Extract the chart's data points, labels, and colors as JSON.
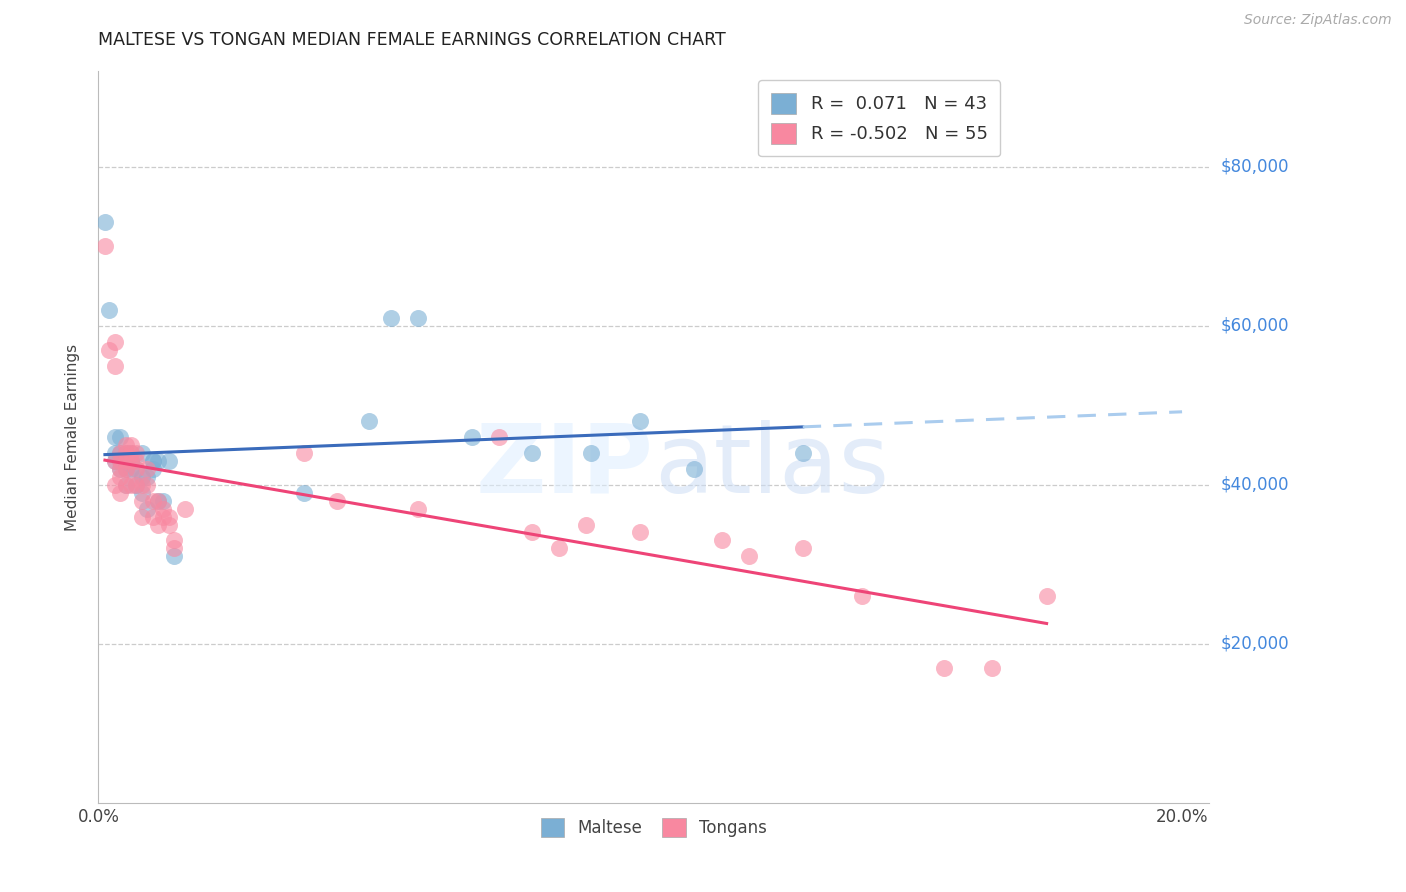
{
  "title": "MALTESE VS TONGAN MEDIAN FEMALE EARNINGS CORRELATION CHART",
  "source": "Source: ZipAtlas.com",
  "ylabel": "Median Female Earnings",
  "ytick_vals": [
    0,
    20000,
    40000,
    60000,
    80000
  ],
  "ytick_labels": [
    "",
    "$20,000",
    "$40,000",
    "$60,000",
    "$80,000"
  ],
  "xlim": [
    0.0,
    0.205
  ],
  "ylim": [
    0,
    92000
  ],
  "maltese_R": 0.071,
  "maltese_N": 43,
  "tongan_R": -0.502,
  "tongan_N": 55,
  "maltese_color": "#7BAFD4",
  "tongan_color": "#F888A0",
  "trendline_maltese_solid_color": "#3A6BBB",
  "trendline_tongan_color": "#EE4477",
  "trendline_maltese_dash_color": "#AACCEE",
  "grid_color": "#CCCCCC",
  "maltese_x": [
    0.0012,
    0.002,
    0.003,
    0.003,
    0.003,
    0.004,
    0.004,
    0.004,
    0.004,
    0.005,
    0.005,
    0.005,
    0.005,
    0.005,
    0.006,
    0.006,
    0.006,
    0.006,
    0.007,
    0.007,
    0.008,
    0.008,
    0.008,
    0.009,
    0.009,
    0.01,
    0.01,
    0.01,
    0.011,
    0.011,
    0.012,
    0.013,
    0.014,
    0.038,
    0.05,
    0.054,
    0.059,
    0.069,
    0.08,
    0.091,
    0.1,
    0.11,
    0.13
  ],
  "maltese_y": [
    73000,
    62000,
    46000,
    44000,
    43000,
    46000,
    44000,
    43000,
    42000,
    44000,
    43000,
    43000,
    42000,
    40000,
    44000,
    43000,
    43000,
    42000,
    42000,
    40000,
    44000,
    41000,
    39000,
    41000,
    37000,
    43000,
    43000,
    42000,
    43000,
    38000,
    38000,
    43000,
    31000,
    39000,
    48000,
    61000,
    61000,
    46000,
    44000,
    44000,
    48000,
    42000,
    44000
  ],
  "tongan_x": [
    0.0012,
    0.002,
    0.003,
    0.003,
    0.003,
    0.003,
    0.004,
    0.004,
    0.004,
    0.004,
    0.004,
    0.005,
    0.005,
    0.005,
    0.005,
    0.005,
    0.006,
    0.006,
    0.006,
    0.006,
    0.007,
    0.007,
    0.007,
    0.007,
    0.008,
    0.008,
    0.008,
    0.009,
    0.009,
    0.01,
    0.01,
    0.011,
    0.011,
    0.012,
    0.012,
    0.013,
    0.013,
    0.014,
    0.014,
    0.016,
    0.038,
    0.044,
    0.059,
    0.074,
    0.08,
    0.085,
    0.09,
    0.1,
    0.115,
    0.12,
    0.13,
    0.141,
    0.156,
    0.165,
    0.175
  ],
  "tongan_y": [
    70000,
    57000,
    58000,
    55000,
    43000,
    40000,
    44000,
    43000,
    42000,
    41000,
    39000,
    45000,
    44000,
    43000,
    42000,
    40000,
    45000,
    44000,
    43000,
    40000,
    44000,
    43000,
    42000,
    40000,
    40000,
    38000,
    36000,
    42000,
    40000,
    38000,
    36000,
    38000,
    35000,
    37000,
    36000,
    36000,
    35000,
    33000,
    32000,
    37000,
    44000,
    38000,
    37000,
    46000,
    34000,
    32000,
    35000,
    34000,
    33000,
    31000,
    32000,
    26000,
    17000,
    17000,
    26000
  ]
}
